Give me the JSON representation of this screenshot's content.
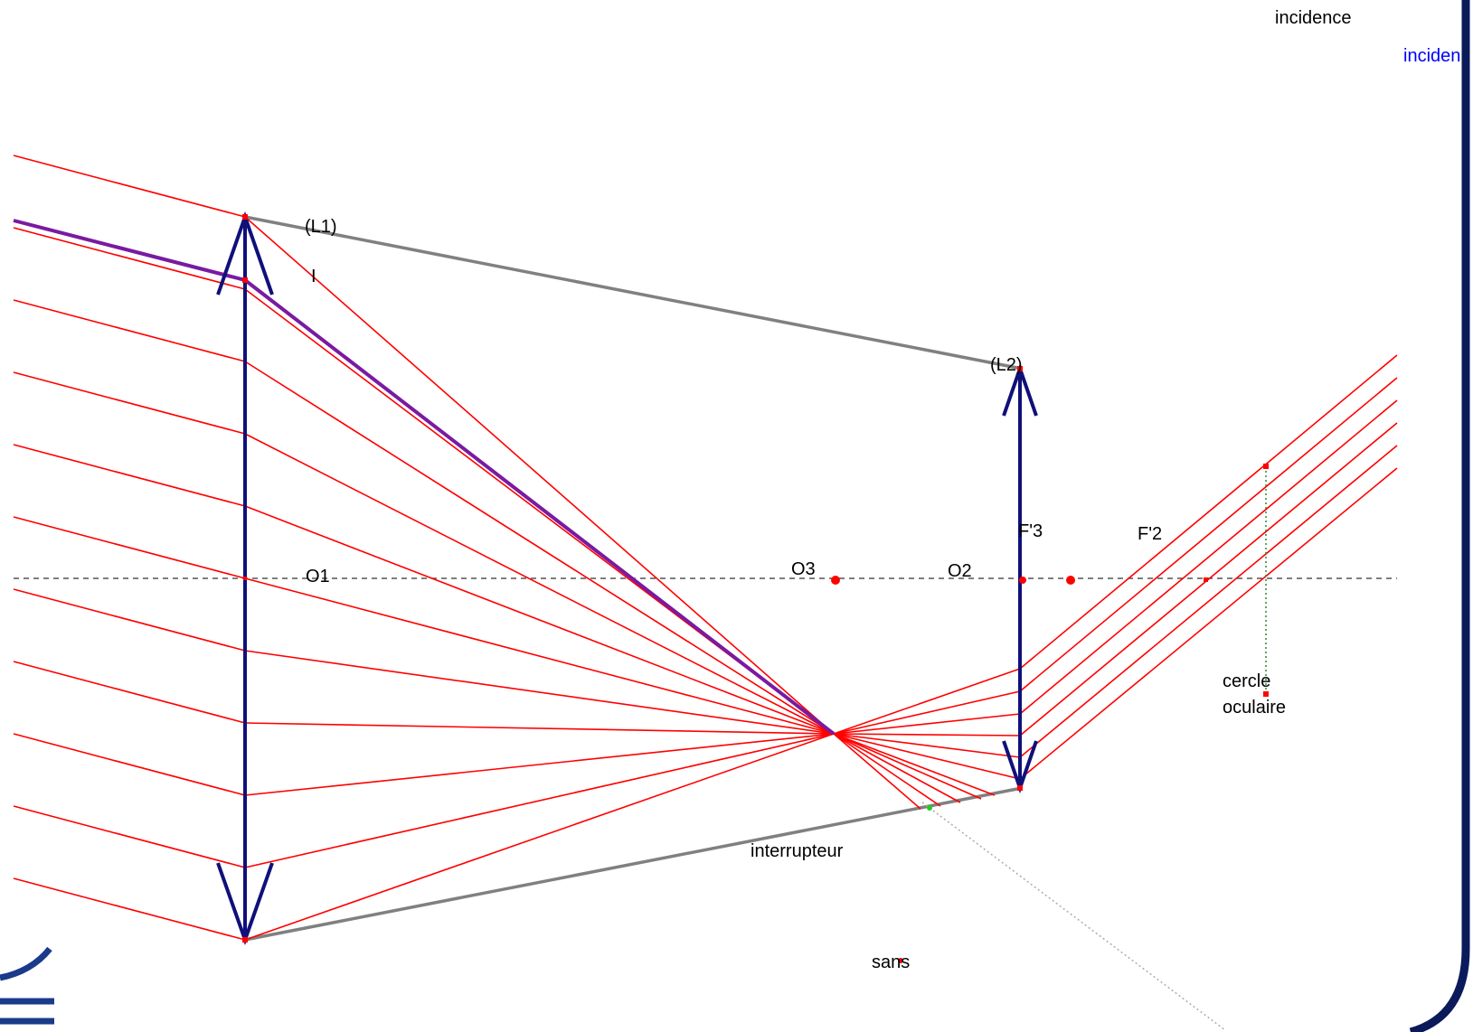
{
  "labels": {
    "incidence_top": "incidence",
    "incidence_blue": "inciden",
    "lens1": "(L1)",
    "point_i": "I",
    "lens2": "(L2)",
    "o1": "O1",
    "o3": "O3",
    "o2": "O2",
    "f3": "F'3",
    "f2": "F'2",
    "cercle_line1": "cercle",
    "cercle_line2": "oculaire",
    "interrupteur": "interrupteur",
    "sans": "sans"
  },
  "colors": {
    "ray": "#ff0000",
    "lens": "#10107a",
    "highlight_ray": "#7a1aa0",
    "mount": "#808080",
    "axis": "#555555",
    "point": "#ff0000",
    "circle_guide": "#2a8a2a",
    "frame": "#0a1a5a",
    "blue_label": "#0000ff"
  }
}
